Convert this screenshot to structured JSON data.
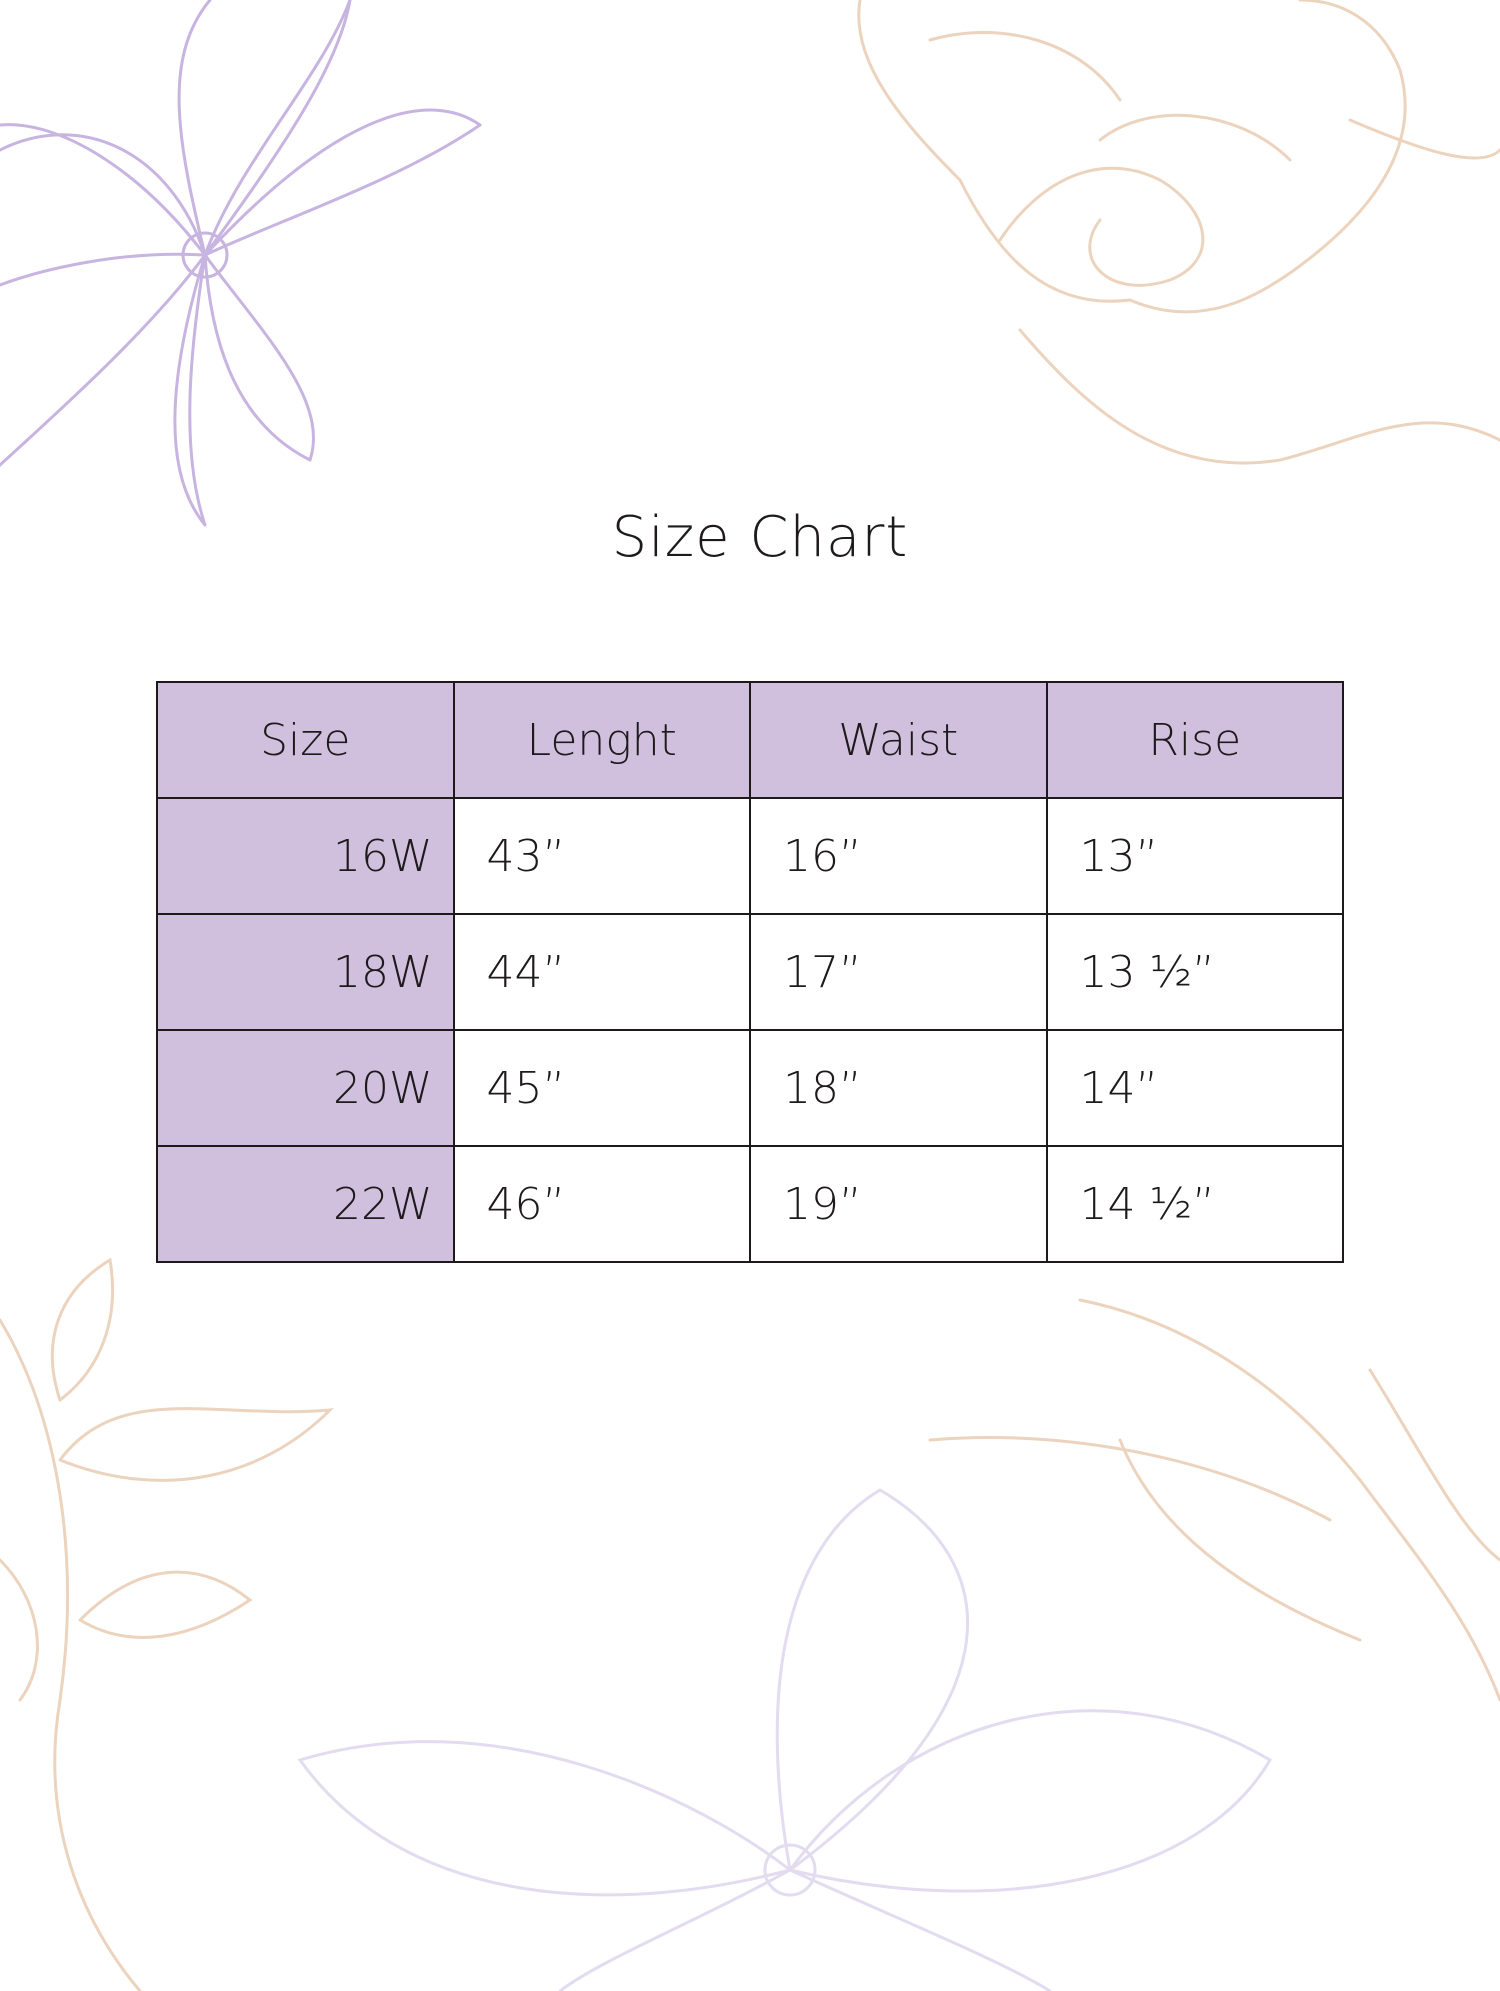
{
  "title": "Size Chart",
  "colors": {
    "header_bg": "#d0c0de",
    "border": "#1e1a1c",
    "lavender_line": "#c8b4e0",
    "peach_line": "#ecd3bd"
  },
  "decorations": [
    "flower-outline-lavender",
    "rose-outline-peach",
    "leaves-outline-peach",
    "flower-outline-lavender-faded"
  ],
  "table": {
    "headers": [
      "Size",
      "Lenght",
      "Waist",
      "Rise"
    ],
    "rows": [
      [
        "16W",
        "43”",
        "16”",
        "13”"
      ],
      [
        "18W",
        "44”",
        "17”",
        "13 ½”"
      ],
      [
        "20W",
        "45”",
        "18”",
        "14”"
      ],
      [
        "22W",
        "46”",
        "19”",
        "14 ½”"
      ]
    ]
  }
}
